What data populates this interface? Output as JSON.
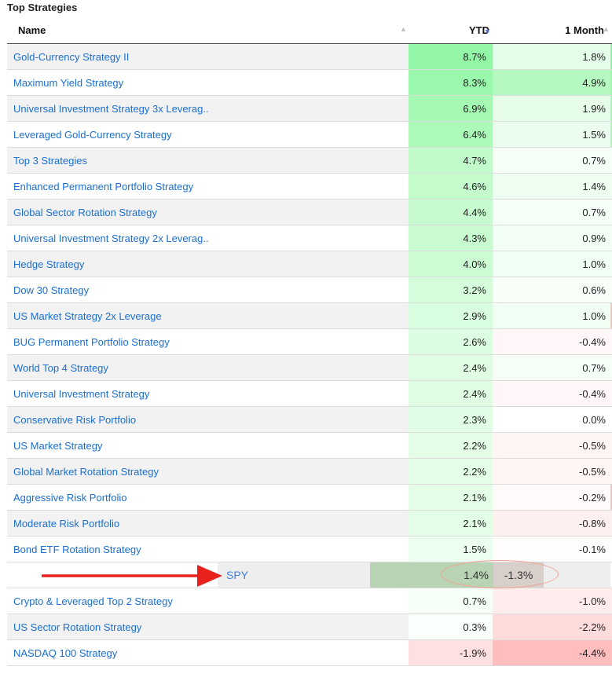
{
  "section_title": "Top Strategies",
  "columns": {
    "name": "Name",
    "ytd": "YTD",
    "month": "1 Month"
  },
  "icons": {
    "sort_neutral": "sort-icon",
    "sort_desc": "sort-desc-icon",
    "arrow": "red-arrow-icon"
  },
  "colors": {
    "link": "#1a6fd1",
    "spy_link": "#3d7fe0",
    "arrow": "#e8211d",
    "highlight_oval": "#f2a08e"
  },
  "rows_top": [
    {
      "name": "Gold-Currency Strategy II",
      "ytd": "8.7%",
      "month": "1.8%",
      "ytd_bg": "#93f5a6",
      "month_bg": "#e4fde8",
      "edge": "#93f5a6"
    },
    {
      "name": "Maximum Yield Strategy",
      "ytd": "8.3%",
      "month": "4.9%",
      "ytd_bg": "#99f8ab",
      "month_bg": "#b5f8c2",
      "edge": "#99f8ab"
    },
    {
      "name": "Universal Investment Strategy 3x Leverag..",
      "ytd": "6.9%",
      "month": "1.9%",
      "ytd_bg": "#a5f9b3",
      "month_bg": "#e6fde9",
      "edge": "#a5f9b3"
    },
    {
      "name": "Leveraged Gold-Currency Strategy",
      "ytd": "6.4%",
      "month": "1.5%",
      "ytd_bg": "#acfab8",
      "month_bg": "#ebfdee",
      "edge": "#acfab8"
    },
    {
      "name": "Top 3 Strategies",
      "ytd": "4.7%",
      "month": "0.7%",
      "ytd_bg": "#c2fbcb",
      "month_bg": "#f6fff7",
      "edge": ""
    },
    {
      "name": "Enhanced Permanent Portfolio Strategy",
      "ytd": "4.6%",
      "month": "1.4%",
      "ytd_bg": "#c3fbcc",
      "month_bg": "#edfdf0",
      "edge": ""
    },
    {
      "name": "Global Sector Rotation Strategy",
      "ytd": "4.4%",
      "month": "0.7%",
      "ytd_bg": "#c6fbcf",
      "month_bg": "#f6fff7",
      "edge": ""
    },
    {
      "name": "Universal Investment Strategy 2x Leverag..",
      "ytd": "4.3%",
      "month": "0.9%",
      "ytd_bg": "#c8fcd0",
      "month_bg": "#f3fef5",
      "edge": ""
    },
    {
      "name": "Hedge Strategy",
      "ytd": "4.0%",
      "month": "1.0%",
      "ytd_bg": "#ccfcd3",
      "month_bg": "#f1fef3",
      "edge": ""
    },
    {
      "name": "Dow 30 Strategy",
      "ytd": "3.2%",
      "month": "0.6%",
      "ytd_bg": "#d6fddb",
      "month_bg": "#f7fff8",
      "edge": ""
    },
    {
      "name": "US Market Strategy 2x Leverage",
      "ytd": "2.9%",
      "month": "1.0%",
      "ytd_bg": "#d9fddf",
      "month_bg": "#f1fef3",
      "edge": "#f3c6c6"
    },
    {
      "name": "BUG Permanent Portfolio Strategy",
      "ytd": "2.6%",
      "month": "-0.4%",
      "ytd_bg": "#ddfde2",
      "month_bg": "#fff7f7",
      "edge": ""
    },
    {
      "name": "World Top 4 Strategy",
      "ytd": "2.4%",
      "month": "0.7%",
      "ytd_bg": "#e0fde4",
      "month_bg": "#f6fff7",
      "edge": ""
    },
    {
      "name": "Universal Investment Strategy",
      "ytd": "2.4%",
      "month": "-0.4%",
      "ytd_bg": "#e0fde4",
      "month_bg": "#fff7f7",
      "edge": ""
    },
    {
      "name": "Conservative Risk Portfolio",
      "ytd": "2.3%",
      "month": "0.0%",
      "ytd_bg": "#e1fde5",
      "month_bg": "#ffffff",
      "edge": ""
    },
    {
      "name": "US Market Strategy",
      "ytd": "2.2%",
      "month": "-0.5%",
      "ytd_bg": "#e3fde6",
      "month_bg": "#fff5f5",
      "edge": ""
    },
    {
      "name": "Global Market Rotation Strategy",
      "ytd": "2.2%",
      "month": "-0.5%",
      "ytd_bg": "#e3fde6",
      "month_bg": "#fff5f5",
      "edge": ""
    },
    {
      "name": "Aggressive Risk Portfolio",
      "ytd": "2.1%",
      "month": "-0.2%",
      "ytd_bg": "#e4fde7",
      "month_bg": "#fffafa",
      "edge": "#f3c6c6"
    },
    {
      "name": "Moderate Risk Portfolio",
      "ytd": "2.1%",
      "month": "-0.8%",
      "ytd_bg": "#e4fde7",
      "month_bg": "#fff0f0",
      "edge": ""
    },
    {
      "name": "Bond ETF Rotation Strategy",
      "ytd": "1.5%",
      "month": "-0.1%",
      "ytd_bg": "#ecfeef",
      "month_bg": "#fffcfc",
      "edge": ""
    }
  ],
  "spy_row": {
    "name": "SPY",
    "ytd": "1.4%",
    "month": "-1.3%"
  },
  "rows_bottom": [
    {
      "name": "Crypto & Leveraged Top 2 Strategy",
      "ytd": "0.7%",
      "month": "-1.0%",
      "ytd_bg": "#f6fff7",
      "month_bg": "#ffeded",
      "edge": ""
    },
    {
      "name": "US Sector Rotation Strategy",
      "ytd": "0.3%",
      "month": "-2.2%",
      "ytd_bg": "#fbfffb",
      "month_bg": "#ffdcdc",
      "edge": ""
    },
    {
      "name": "NASDAQ 100 Strategy",
      "ytd": "-1.9%",
      "month": "-4.4%",
      "ytd_bg": "#ffe0e0",
      "month_bg": "#ffbdbd",
      "edge": ""
    }
  ]
}
